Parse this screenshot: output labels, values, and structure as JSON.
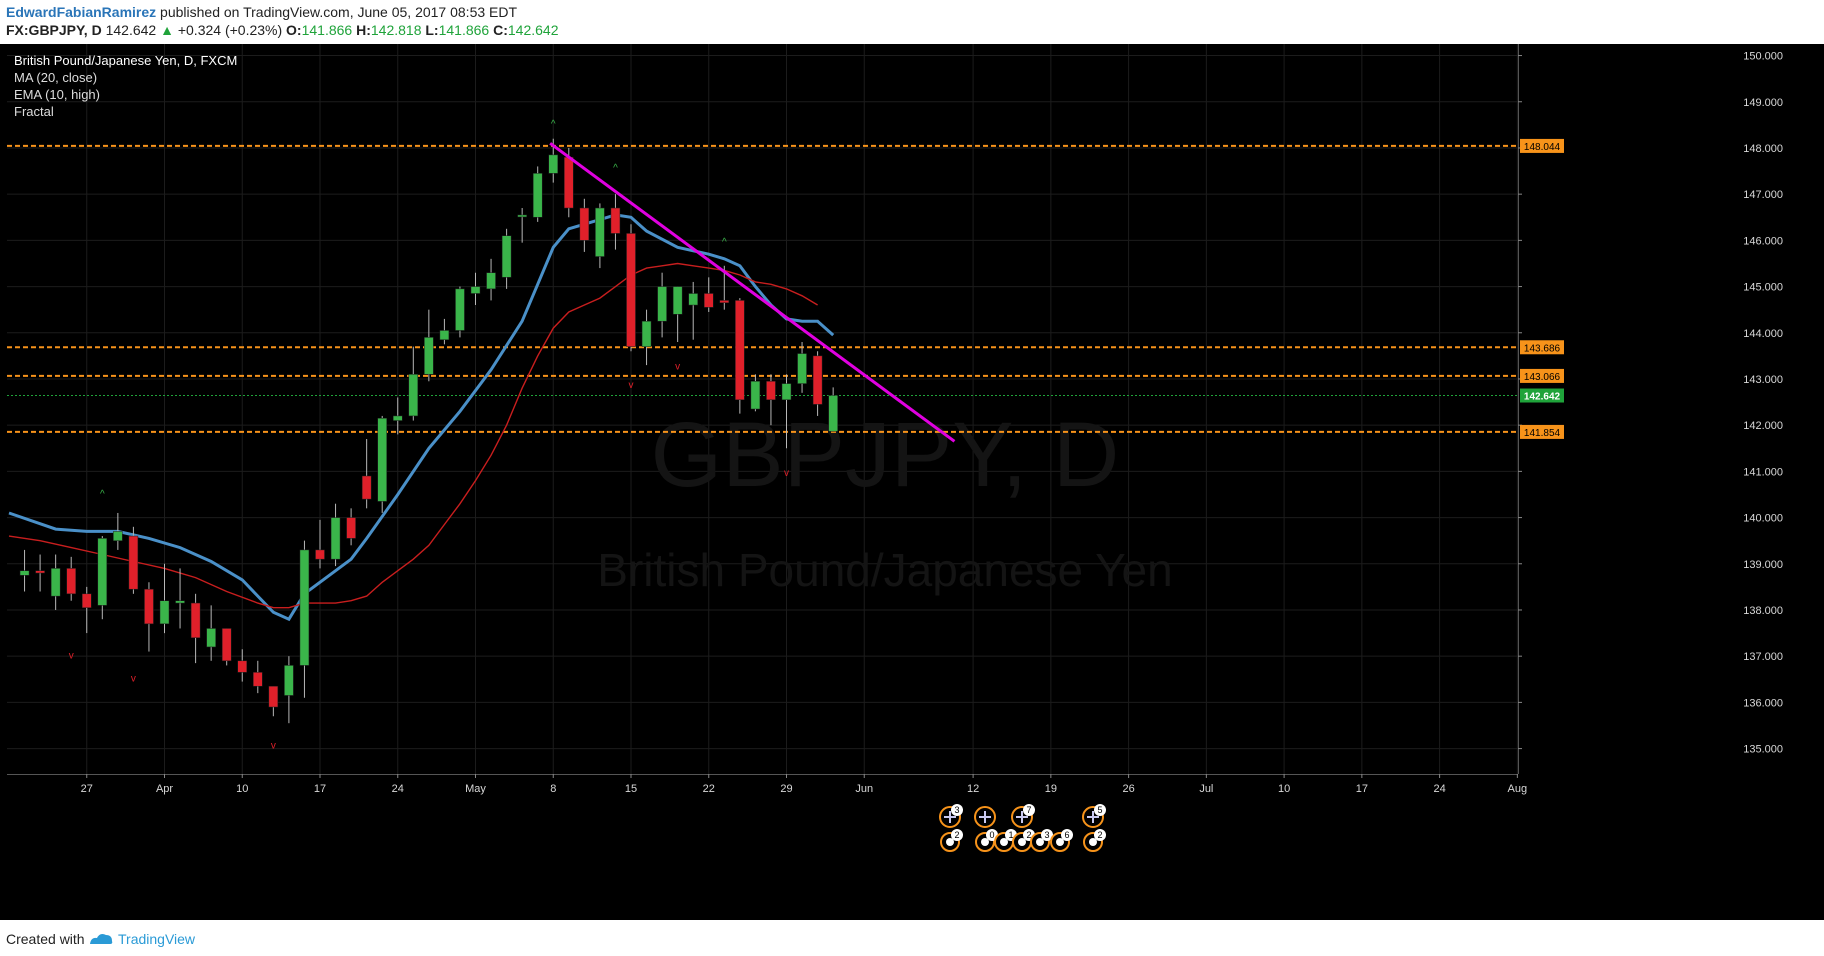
{
  "header": {
    "author": "EdwardFabianRamirez",
    "published": "published on TradingView.com, June 05, 2017 08:53 EDT",
    "symbol": "FX:GBPJPY, D",
    "last": "142.642",
    "change": "+0.324 (+0.23%)",
    "o_label": "O:",
    "o_value": "141.866",
    "h_label": "H:",
    "h_value": "142.818",
    "l_label": "L:",
    "l_value": "141.866",
    "c_label": "C:",
    "c_value": "142.642"
  },
  "legend": {
    "title": "British Pound/Japanese Yen, D, FXCM",
    "ma": "MA (20, close)",
    "ema": "EMA (10, high)",
    "fractal": "Fractal"
  },
  "watermark": {
    "big": "GBPJPY, D",
    "sub": "British Pound/Japanese Yen"
  },
  "footer": {
    "created": "Created with",
    "brand": "TradingView"
  },
  "colors": {
    "bg": "#000000",
    "up": "#3ab54a",
    "down": "#e0202a",
    "ma": "#4a90c8",
    "ema": "#c81e1e",
    "trend": "#e000e0",
    "level": "#f7931a",
    "last": "#1fa33a"
  },
  "chart_data": {
    "type": "candlestick",
    "title": "British Pound/Japanese Yen, D, FXCM",
    "ylim": [
      134.45,
      150.25
    ],
    "y_ticks": [
      "150.000",
      "149.000",
      "148.000",
      "147.000",
      "146.000",
      "145.000",
      "144.000",
      "143.000",
      "142.000",
      "141.000",
      "140.000",
      "139.000",
      "138.000",
      "137.000",
      "136.000",
      "135.000"
    ],
    "x_ticks": [
      {
        "label": "27",
        "i": 5
      },
      {
        "label": "Apr",
        "i": 10
      },
      {
        "label": "10",
        "i": 15
      },
      {
        "label": "17",
        "i": 20
      },
      {
        "label": "24",
        "i": 25
      },
      {
        "label": "May",
        "i": 30
      },
      {
        "label": "8",
        "i": 35
      },
      {
        "label": "15",
        "i": 40
      },
      {
        "label": "22",
        "i": 45
      },
      {
        "label": "29",
        "i": 50
      },
      {
        "label": "Jun",
        "i": 55
      },
      {
        "label": "12",
        "i": 62
      },
      {
        "label": "19",
        "i": 67
      },
      {
        "label": "26",
        "i": 72
      },
      {
        "label": "Jul",
        "i": 77
      },
      {
        "label": "10",
        "i": 82
      },
      {
        "label": "17",
        "i": 87
      },
      {
        "label": "24",
        "i": 92
      },
      {
        "label": "Aug",
        "i": 97
      }
    ],
    "candles": [
      {
        "i": 1,
        "o": 138.75,
        "h": 139.3,
        "l": 138.4,
        "c": 138.85
      },
      {
        "i": 2,
        "o": 138.85,
        "h": 139.2,
        "l": 138.4,
        "c": 138.8
      },
      {
        "i": 3,
        "o": 138.3,
        "h": 139.2,
        "l": 138.0,
        "c": 138.9
      },
      {
        "i": 4,
        "o": 138.9,
        "h": 139.15,
        "l": 138.2,
        "c": 138.35
      },
      {
        "i": 5,
        "o": 138.35,
        "h": 138.5,
        "l": 137.5,
        "c": 138.05
      },
      {
        "i": 6,
        "o": 138.1,
        "h": 139.6,
        "l": 137.8,
        "c": 139.55
      },
      {
        "i": 7,
        "o": 139.5,
        "h": 140.1,
        "l": 139.3,
        "c": 139.7
      },
      {
        "i": 8,
        "o": 139.6,
        "h": 139.8,
        "l": 138.35,
        "c": 138.45
      },
      {
        "i": 9,
        "o": 138.45,
        "h": 138.6,
        "l": 137.1,
        "c": 137.7
      },
      {
        "i": 10,
        "o": 137.7,
        "h": 139.0,
        "l": 137.5,
        "c": 138.2
      },
      {
        "i": 11,
        "o": 138.15,
        "h": 138.9,
        "l": 137.6,
        "c": 138.2
      },
      {
        "i": 12,
        "o": 138.15,
        "h": 138.35,
        "l": 136.85,
        "c": 137.4
      },
      {
        "i": 13,
        "o": 137.2,
        "h": 138.1,
        "l": 136.9,
        "c": 137.6
      },
      {
        "i": 14,
        "o": 137.6,
        "h": 137.6,
        "l": 136.8,
        "c": 136.9
      },
      {
        "i": 15,
        "o": 136.9,
        "h": 137.15,
        "l": 136.45,
        "c": 136.65
      },
      {
        "i": 16,
        "o": 136.65,
        "h": 136.9,
        "l": 136.2,
        "c": 136.35
      },
      {
        "i": 17,
        "o": 136.35,
        "h": 136.35,
        "l": 135.7,
        "c": 135.9
      },
      {
        "i": 18,
        "o": 136.15,
        "h": 137.0,
        "l": 135.55,
        "c": 136.8
      },
      {
        "i": 19,
        "o": 136.8,
        "h": 139.5,
        "l": 136.1,
        "c": 139.3
      },
      {
        "i": 20,
        "o": 139.3,
        "h": 139.95,
        "l": 138.9,
        "c": 139.1
      },
      {
        "i": 21,
        "o": 139.1,
        "h": 140.3,
        "l": 138.95,
        "c": 140.0
      },
      {
        "i": 22,
        "o": 140.0,
        "h": 140.2,
        "l": 139.4,
        "c": 139.55
      },
      {
        "i": 23,
        "o": 140.9,
        "h": 141.7,
        "l": 140.2,
        "c": 140.4
      },
      {
        "i": 24,
        "o": 140.35,
        "h": 142.2,
        "l": 140.1,
        "c": 142.15
      },
      {
        "i": 25,
        "o": 142.1,
        "h": 142.6,
        "l": 141.8,
        "c": 142.2
      },
      {
        "i": 26,
        "o": 142.2,
        "h": 143.7,
        "l": 142.1,
        "c": 143.1
      },
      {
        "i": 27,
        "o": 143.1,
        "h": 144.5,
        "l": 142.95,
        "c": 143.9
      },
      {
        "i": 28,
        "o": 143.85,
        "h": 144.3,
        "l": 143.75,
        "c": 144.05
      },
      {
        "i": 29,
        "o": 144.05,
        "h": 145.0,
        "l": 143.9,
        "c": 144.95
      },
      {
        "i": 30,
        "o": 144.85,
        "h": 145.3,
        "l": 144.6,
        "c": 145.0
      },
      {
        "i": 31,
        "o": 144.95,
        "h": 145.6,
        "l": 144.7,
        "c": 145.3
      },
      {
        "i": 32,
        "o": 145.2,
        "h": 146.25,
        "l": 144.95,
        "c": 146.1
      },
      {
        "i": 33,
        "o": 146.55,
        "h": 146.7,
        "l": 145.95,
        "c": 146.55
      },
      {
        "i": 34,
        "o": 146.5,
        "h": 147.6,
        "l": 146.4,
        "c": 147.45
      },
      {
        "i": 35,
        "o": 147.45,
        "h": 148.2,
        "l": 147.25,
        "c": 147.85
      },
      {
        "i": 36,
        "o": 147.8,
        "h": 148.0,
        "l": 146.5,
        "c": 146.7
      },
      {
        "i": 37,
        "o": 146.7,
        "h": 146.9,
        "l": 145.75,
        "c": 146.0
      },
      {
        "i": 38,
        "o": 145.65,
        "h": 146.8,
        "l": 145.4,
        "c": 146.7
      },
      {
        "i": 39,
        "o": 146.7,
        "h": 147.0,
        "l": 145.8,
        "c": 146.15
      },
      {
        "i": 40,
        "o": 146.15,
        "h": 146.35,
        "l": 143.6,
        "c": 143.7
      },
      {
        "i": 41,
        "o": 143.7,
        "h": 144.5,
        "l": 143.3,
        "c": 144.25
      },
      {
        "i": 42,
        "o": 144.25,
        "h": 145.3,
        "l": 143.9,
        "c": 145.0
      },
      {
        "i": 43,
        "o": 144.4,
        "h": 145.0,
        "l": 143.8,
        "c": 145.0
      },
      {
        "i": 44,
        "o": 144.6,
        "h": 145.1,
        "l": 143.85,
        "c": 144.85
      },
      {
        "i": 45,
        "o": 144.85,
        "h": 145.2,
        "l": 144.45,
        "c": 144.55
      },
      {
        "i": 46,
        "o": 144.7,
        "h": 145.45,
        "l": 144.5,
        "c": 144.65
      },
      {
        "i": 47,
        "o": 144.7,
        "h": 144.75,
        "l": 142.25,
        "c": 142.55
      },
      {
        "i": 48,
        "o": 142.35,
        "h": 143.1,
        "l": 142.3,
        "c": 142.95
      },
      {
        "i": 49,
        "o": 142.95,
        "h": 143.1,
        "l": 142.0,
        "c": 142.55
      },
      {
        "i": 50,
        "o": 142.55,
        "h": 143.1,
        "l": 141.5,
        "c": 142.9
      },
      {
        "i": 51,
        "o": 142.9,
        "h": 143.8,
        "l": 142.7,
        "c": 143.55
      },
      {
        "i": 52,
        "o": 143.5,
        "h": 143.6,
        "l": 142.2,
        "c": 142.45
      },
      {
        "i": 53,
        "o": 141.866,
        "h": 142.818,
        "l": 141.866,
        "c": 142.642
      }
    ],
    "series": [
      {
        "name": "MA (20, close)",
        "points": [
          [
            0,
            140.1
          ],
          [
            3,
            139.75
          ],
          [
            5,
            139.7
          ],
          [
            7,
            139.7
          ],
          [
            9,
            139.55
          ],
          [
            11,
            139.35
          ],
          [
            13,
            139.05
          ],
          [
            15,
            138.65
          ],
          [
            16,
            138.3
          ],
          [
            17,
            137.95
          ],
          [
            18,
            137.8
          ],
          [
            19,
            138.35
          ],
          [
            21,
            138.85
          ],
          [
            22,
            139.1
          ],
          [
            23,
            139.55
          ],
          [
            25,
            140.5
          ],
          [
            27,
            141.5
          ],
          [
            29,
            142.3
          ],
          [
            31,
            143.2
          ],
          [
            33,
            144.25
          ],
          [
            34,
            145.05
          ],
          [
            35,
            145.85
          ],
          [
            36,
            146.25
          ],
          [
            37,
            146.35
          ],
          [
            38,
            146.45
          ],
          [
            39,
            146.55
          ],
          [
            40,
            146.5
          ],
          [
            41,
            146.2
          ],
          [
            43,
            145.85
          ],
          [
            45,
            145.7
          ],
          [
            46,
            145.6
          ],
          [
            47,
            145.45
          ],
          [
            48,
            145.0
          ],
          [
            49,
            144.6
          ],
          [
            50,
            144.3
          ],
          [
            51,
            144.25
          ],
          [
            52,
            144.25
          ],
          [
            53,
            143.95
          ]
        ]
      },
      {
        "name": "EMA (10, high)",
        "points": [
          [
            0,
            139.6
          ],
          [
            2,
            139.5
          ],
          [
            4,
            139.35
          ],
          [
            6,
            139.2
          ],
          [
            8,
            139.05
          ],
          [
            10,
            138.9
          ],
          [
            12,
            138.7
          ],
          [
            14,
            138.4
          ],
          [
            16,
            138.15
          ],
          [
            17,
            138.05
          ],
          [
            18,
            138.05
          ],
          [
            19,
            138.15
          ],
          [
            21,
            138.15
          ],
          [
            22,
            138.2
          ],
          [
            23,
            138.3
          ],
          [
            24,
            138.6
          ],
          [
            25,
            138.85
          ],
          [
            26,
            139.1
          ],
          [
            27,
            139.4
          ],
          [
            28,
            139.85
          ],
          [
            29,
            140.3
          ],
          [
            30,
            140.8
          ],
          [
            31,
            141.35
          ],
          [
            32,
            142.0
          ],
          [
            33,
            142.8
          ],
          [
            34,
            143.5
          ],
          [
            35,
            144.1
          ],
          [
            36,
            144.45
          ],
          [
            37,
            144.6
          ],
          [
            38,
            144.75
          ],
          [
            39,
            145.0
          ],
          [
            40,
            145.25
          ],
          [
            41,
            145.4
          ],
          [
            42,
            145.45
          ],
          [
            43,
            145.5
          ],
          [
            44,
            145.45
          ],
          [
            45,
            145.4
          ],
          [
            46,
            145.35
          ],
          [
            47,
            145.25
          ],
          [
            48,
            145.1
          ],
          [
            49,
            145.05
          ],
          [
            50,
            144.95
          ],
          [
            51,
            144.8
          ],
          [
            52,
            144.6
          ]
        ]
      }
    ],
    "fractals_up": [
      [
        6,
        140.45
      ],
      [
        35,
        148.45
      ],
      [
        39,
        147.5
      ],
      [
        46,
        145.9
      ]
    ],
    "fractals_down": [
      [
        4,
        136.95
      ],
      [
        8,
        136.45
      ],
      [
        17,
        135.0
      ],
      [
        40,
        142.8
      ],
      [
        43,
        143.2
      ],
      [
        50,
        140.9
      ]
    ],
    "trendline": [
      [
        34.8,
        148.1
      ],
      [
        60.8,
        141.65
      ]
    ],
    "levels": [
      148.044,
      143.686,
      143.066,
      141.854
    ],
    "level_labels": [
      "148.044",
      "143.686",
      "143.066",
      "141.854"
    ],
    "last_price": 142.642,
    "last_label": "142.642",
    "events_top": [
      "3",
      "",
      "7",
      "5"
    ],
    "events_bottom": [
      "2",
      "0",
      "1",
      "2",
      "3",
      "6",
      "2"
    ]
  }
}
